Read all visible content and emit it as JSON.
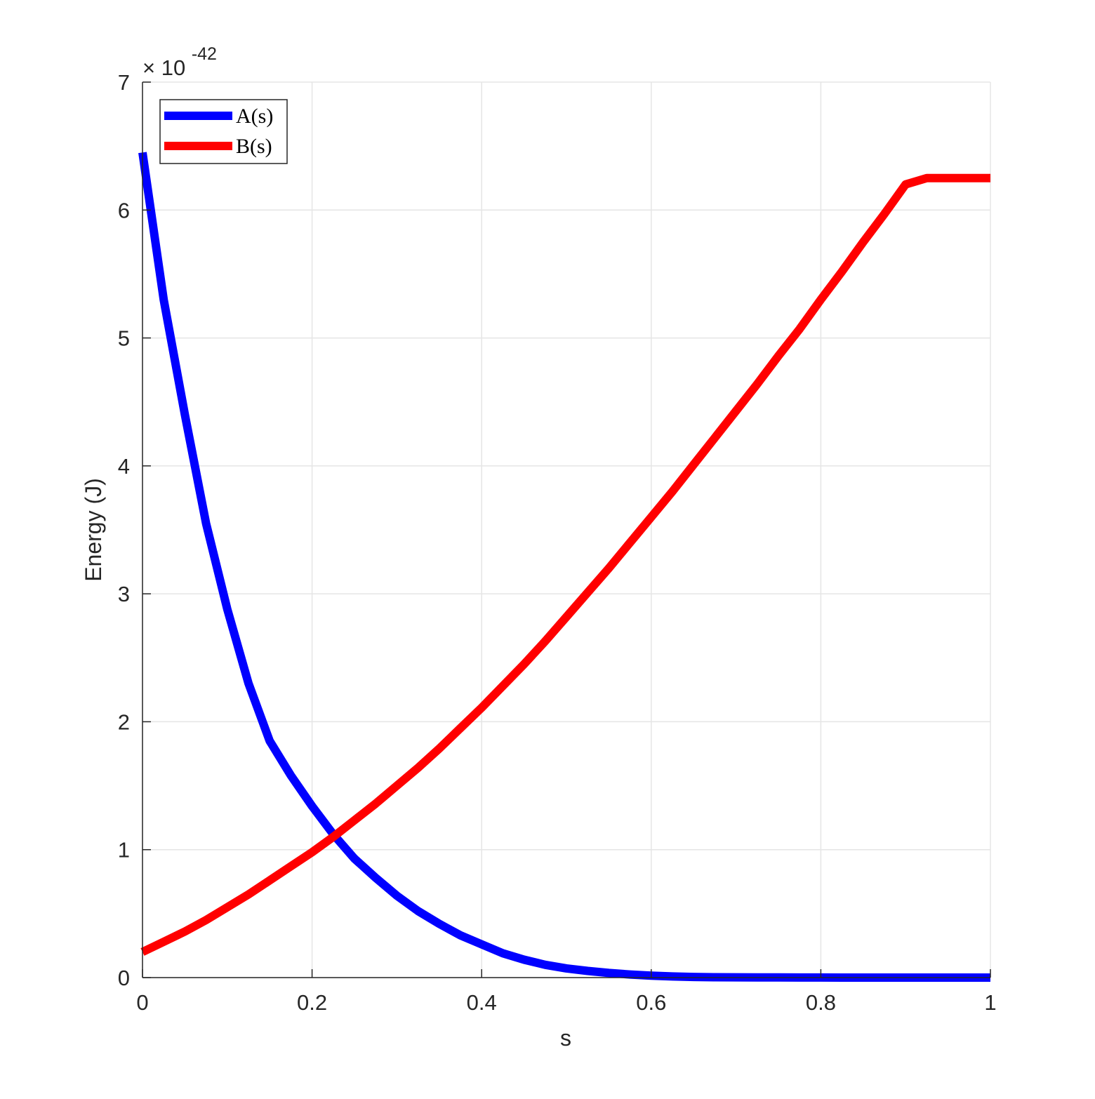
{
  "chart_data": {
    "type": "line",
    "title": "",
    "xlabel": "s",
    "ylabel": "Energy (J)",
    "y_exponent_label": "× 10",
    "y_exponent_power": "-42",
    "xlim": [
      0,
      1
    ],
    "ylim": [
      0,
      7
    ],
    "xticks": [
      0,
      0.2,
      0.4,
      0.6,
      0.8,
      1
    ],
    "xtick_labels": [
      "0",
      "0.2",
      "0.4",
      "0.6",
      "0.8",
      "1"
    ],
    "yticks": [
      0,
      1,
      2,
      3,
      4,
      5,
      6,
      7
    ],
    "ytick_labels": [
      "0",
      "1",
      "2",
      "3",
      "4",
      "5",
      "6",
      "7"
    ],
    "grid": true,
    "legend_position": "top-left",
    "x": [
      0,
      0.025,
      0.05,
      0.075,
      0.1,
      0.125,
      0.15,
      0.175,
      0.2,
      0.225,
      0.25,
      0.275,
      0.3,
      0.325,
      0.35,
      0.375,
      0.4,
      0.425,
      0.45,
      0.475,
      0.5,
      0.525,
      0.55,
      0.575,
      0.6,
      0.625,
      0.65,
      0.675,
      0.7,
      0.725,
      0.75,
      0.775,
      0.8,
      0.825,
      0.85,
      0.875,
      0.9,
      0.925,
      0.95,
      0.975,
      1
    ],
    "series": [
      {
        "name": "A(s)",
        "color": "#0000ff",
        "values": [
          6.45,
          5.3,
          4.4,
          3.55,
          2.88,
          2.3,
          1.85,
          1.58,
          1.34,
          1.12,
          0.93,
          0.78,
          0.64,
          0.52,
          0.42,
          0.33,
          0.26,
          0.19,
          0.14,
          0.1,
          0.072,
          0.052,
          0.036,
          0.024,
          0.015,
          0.009,
          0.005,
          0.003,
          0.002,
          0.001,
          0.001,
          0.0005,
          0.0003,
          0.0002,
          0.0001,
          0.0001,
          0,
          0,
          0,
          0,
          0
        ]
      },
      {
        "name": "B(s)",
        "color": "#ff0000",
        "values": [
          0.2,
          0.28,
          0.36,
          0.45,
          0.55,
          0.65,
          0.76,
          0.87,
          0.98,
          1.1,
          1.23,
          1.36,
          1.5,
          1.64,
          1.79,
          1.95,
          2.11,
          2.28,
          2.45,
          2.63,
          2.82,
          3.01,
          3.2,
          3.4,
          3.6,
          3.8,
          4.01,
          4.22,
          4.43,
          4.64,
          4.86,
          5.07,
          5.3,
          5.52,
          5.75,
          5.97,
          6.2,
          6.25,
          6.25,
          6.25,
          6.25
        ]
      }
    ]
  }
}
